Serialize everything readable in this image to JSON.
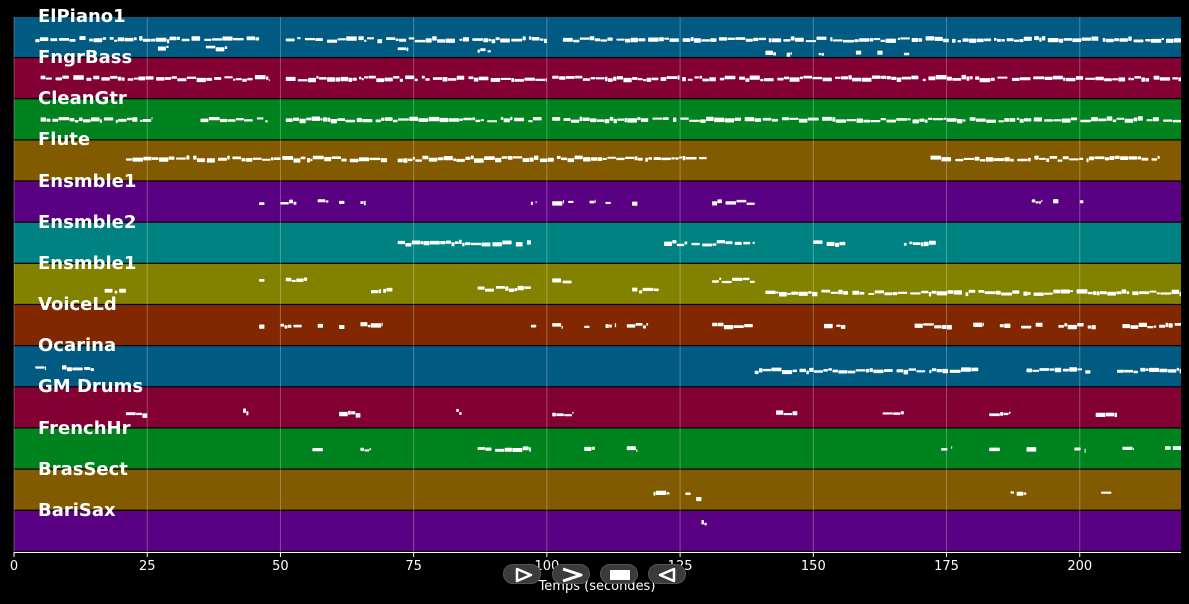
{
  "chart_data": {
    "type": "piano-roll",
    "xlabel": "Temps (secondes)",
    "xlim": [
      0,
      219
    ],
    "xticks": [
      0,
      25,
      50,
      75,
      100,
      125,
      150,
      175,
      200
    ],
    "xtick_labels": [
      "0",
      "25",
      "50",
      "75",
      "100",
      "125",
      "150",
      "175",
      "200"
    ],
    "grid": true,
    "tracks": [
      {
        "name": "ElPiano1",
        "color": "#005a82",
        "notes": [
          [
            4,
            46,
            0.55
          ],
          [
            51,
            100,
            0.55
          ],
          [
            103,
            219,
            0.55
          ],
          [
            27,
            29,
            0.75
          ],
          [
            36,
            40,
            0.75
          ],
          [
            72,
            74,
            0.8
          ],
          [
            87,
            90,
            0.8
          ],
          [
            141,
            143,
            0.9
          ],
          [
            145,
            146,
            0.9
          ],
          [
            151,
            152,
            0.9
          ],
          [
            158,
            159,
            0.9
          ],
          [
            162,
            163,
            0.9
          ],
          [
            167,
            168,
            0.9
          ]
        ]
      },
      {
        "name": "FngrBass",
        "color": "#820032",
        "notes": [
          [
            5,
            48,
            0.5
          ],
          [
            51,
            100,
            0.5
          ],
          [
            101,
            219,
            0.5
          ]
        ]
      },
      {
        "name": "CleanGtr",
        "color": "#00821e",
        "notes": [
          [
            5,
            26,
            0.5
          ],
          [
            35,
            48,
            0.5
          ],
          [
            51,
            99,
            0.5
          ],
          [
            101,
            219,
            0.5
          ]
        ]
      },
      {
        "name": "Flute",
        "color": "#825a00",
        "notes": [
          [
            21,
            70,
            0.45
          ],
          [
            72,
            130,
            0.45
          ],
          [
            172,
            215,
            0.45
          ]
        ]
      },
      {
        "name": "Ensmble1",
        "color": "#5a0082",
        "notes": [
          [
            46,
            47,
            0.5
          ],
          [
            50,
            53,
            0.5
          ],
          [
            57,
            59,
            0.5
          ],
          [
            61,
            62,
            0.5
          ],
          [
            65,
            66,
            0.5
          ],
          [
            97,
            98,
            0.5
          ],
          [
            101,
            103,
            0.5
          ],
          [
            104,
            105,
            0.5
          ],
          [
            108,
            109,
            0.5
          ],
          [
            111,
            112,
            0.5
          ],
          [
            116,
            117,
            0.5
          ],
          [
            131,
            139,
            0.5
          ],
          [
            191,
            193,
            0.5
          ],
          [
            195,
            196,
            0.5
          ],
          [
            200,
            201,
            0.5
          ]
        ]
      },
      {
        "name": "Ensmble2",
        "color": "#008282",
        "notes": [
          [
            72,
            97,
            0.5
          ],
          [
            122,
            139,
            0.5
          ],
          [
            150,
            156,
            0.5
          ],
          [
            167,
            173,
            0.5
          ]
        ]
      },
      {
        "name": "Ensmble1",
        "color": "#828200",
        "notes": [
          [
            17,
            21,
            0.65
          ],
          [
            46,
            47,
            0.4
          ],
          [
            51,
            55,
            0.4
          ],
          [
            67,
            71,
            0.65
          ],
          [
            87,
            97,
            0.6
          ],
          [
            101,
            105,
            0.4
          ],
          [
            116,
            121,
            0.65
          ],
          [
            131,
            139,
            0.4
          ],
          [
            141,
            219,
            0.7
          ]
        ]
      },
      {
        "name": "VoiceLd",
        "color": "#822800",
        "notes": [
          [
            46,
            47,
            0.5
          ],
          [
            50,
            54,
            0.5
          ],
          [
            57,
            58,
            0.5
          ],
          [
            61,
            62,
            0.5
          ],
          [
            65,
            69,
            0.5
          ],
          [
            97,
            98,
            0.5
          ],
          [
            101,
            103,
            0.5
          ],
          [
            107,
            108,
            0.5
          ],
          [
            111,
            113,
            0.5
          ],
          [
            115,
            119,
            0.5
          ],
          [
            131,
            139,
            0.5
          ],
          [
            152,
            156,
            0.5
          ],
          [
            169,
            176,
            0.5
          ],
          [
            180,
            182,
            0.5
          ],
          [
            185,
            187,
            0.5
          ],
          [
            189,
            193,
            0.5
          ],
          [
            196,
            203,
            0.5
          ],
          [
            208,
            219,
            0.5
          ]
        ]
      },
      {
        "name": "Ocarina",
        "color": "#005a82",
        "notes": [
          [
            4,
            6,
            0.55
          ],
          [
            9,
            15,
            0.55
          ],
          [
            139,
            181,
            0.6
          ],
          [
            190,
            202,
            0.6
          ],
          [
            207,
            219,
            0.6
          ]
        ]
      },
      {
        "name": "GM Drums",
        "color": "#820032",
        "notes": [
          [
            21,
            25,
            0.65
          ],
          [
            43,
            44,
            0.6
          ],
          [
            61,
            65,
            0.65
          ],
          [
            83,
            84,
            0.6
          ],
          [
            101,
            105,
            0.65
          ],
          [
            143,
            147,
            0.65
          ],
          [
            163,
            167,
            0.65
          ],
          [
            183,
            187,
            0.65
          ],
          [
            203,
            207,
            0.65
          ]
        ]
      },
      {
        "name": "FrenchHr",
        "color": "#00821e",
        "notes": [
          [
            56,
            58,
            0.5
          ],
          [
            65,
            67,
            0.5
          ],
          [
            87,
            97,
            0.5
          ],
          [
            107,
            109,
            0.5
          ],
          [
            115,
            117,
            0.5
          ],
          [
            174,
            176,
            0.5
          ],
          [
            183,
            185,
            0.5
          ],
          [
            190,
            192,
            0.5
          ],
          [
            199,
            201,
            0.5
          ],
          [
            208,
            210,
            0.5
          ],
          [
            216,
            219,
            0.5
          ]
        ]
      },
      {
        "name": "BrasSect",
        "color": "#825a00",
        "notes": [
          [
            120,
            123,
            0.55
          ],
          [
            126,
            127,
            0.55
          ],
          [
            128,
            129,
            0.7
          ],
          [
            187,
            190,
            0.55
          ],
          [
            204,
            206,
            0.55
          ]
        ]
      },
      {
        "name": "BariSax",
        "color": "#5a0082",
        "notes": [
          [
            129,
            130,
            0.3
          ]
        ]
      }
    ]
  },
  "controls": [
    {
      "name": "play-button",
      "icon": "play-icon"
    },
    {
      "name": "forward-button",
      "icon": "chevron-right-icon"
    },
    {
      "name": "stop-button",
      "icon": "stop-icon"
    },
    {
      "name": "rewind-button",
      "icon": "rewind-icon"
    }
  ]
}
